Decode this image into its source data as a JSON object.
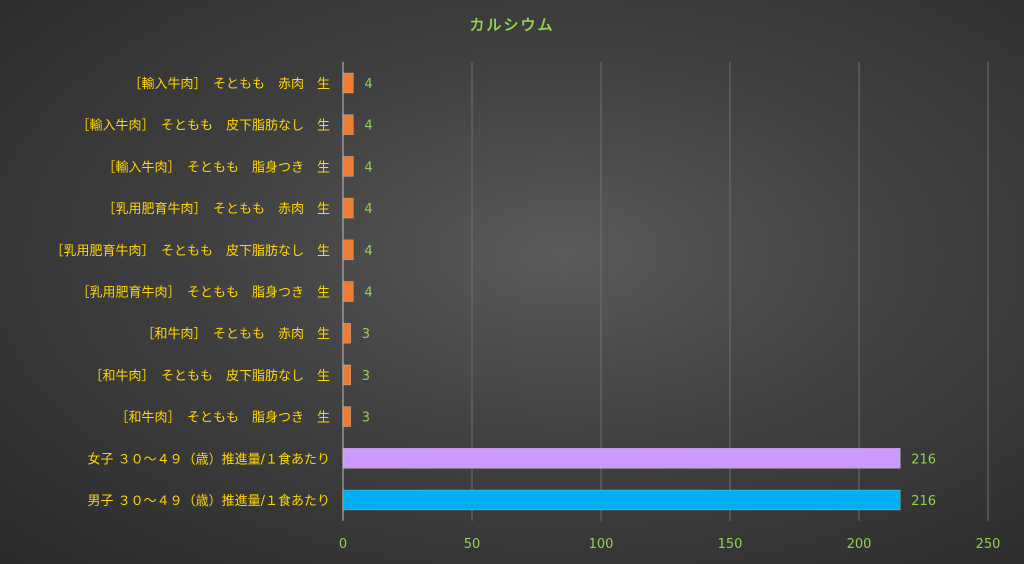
{
  "chart_data": {
    "type": "bar",
    "orientation": "horizontal",
    "title": "カルシウム",
    "xlim": [
      0,
      250
    ],
    "xticks": [
      0,
      50,
      100,
      150,
      200,
      250
    ],
    "grid": true,
    "categories": [
      "［輸入牛肉］　そともも　赤肉　生",
      "［輸入牛肉］　そともも　皮下脂肪なし　生",
      "［輸入牛肉］　そともも　脂身つき　生",
      "［乳用肥育牛肉］　そともも　赤肉　生",
      "［乳用肥育牛肉］　そともも　皮下脂肪なし　生",
      "［乳用肥育牛肉］　そともも　脂身つき　生",
      "［和牛肉］　そともも　赤肉　生",
      "［和牛肉］　そともも　皮下脂肪なし　生",
      "［和牛肉］　そともも　脂身つき　生",
      "女子 ３０～４９（歳）推進量/１食あたり",
      "男子 ３０～４９（歳）推進量/１食あたり"
    ],
    "values": [
      4,
      4,
      4,
      4,
      4,
      4,
      3,
      3,
      3,
      216,
      216
    ],
    "colors": [
      "#ed7d31",
      "#ed7d31",
      "#ed7d31",
      "#ed7d31",
      "#ed7d31",
      "#ed7d31",
      "#ed7d31",
      "#ed7d31",
      "#ed7d31",
      "#cc99ff",
      "#00b0f0"
    ]
  }
}
